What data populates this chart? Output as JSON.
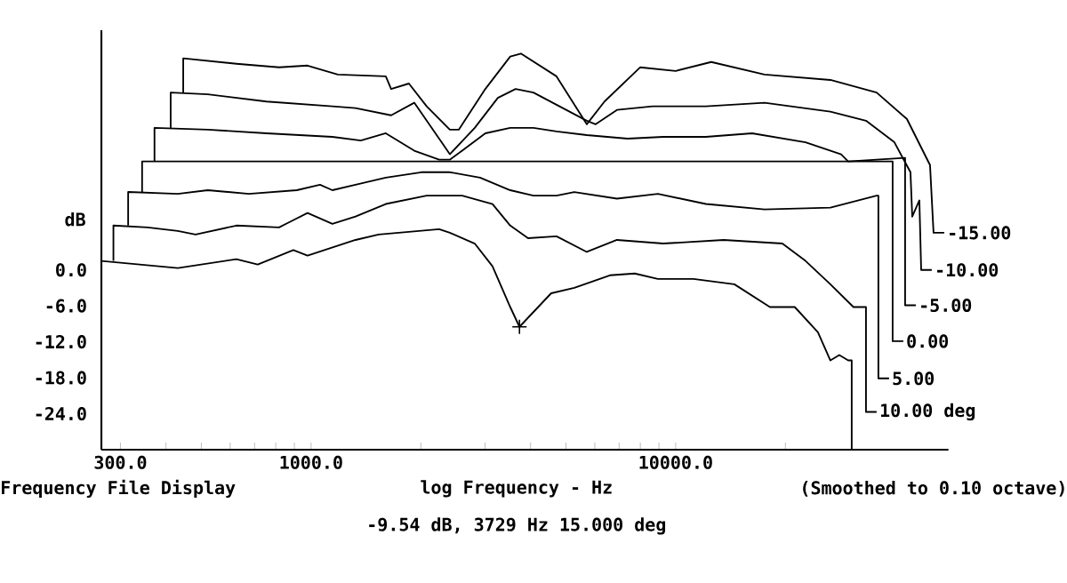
{
  "chart_data": {
    "type": "line",
    "xlabel": "log Frequency - Hz",
    "ylabel": "dB",
    "log": "x",
    "xlim": [
      266,
      56000
    ],
    "ylim": [
      -30,
      40
    ],
    "xticks": [
      {
        "value": 300,
        "label": "300.0"
      },
      {
        "value": 400,
        "label": null
      },
      {
        "value": 500,
        "label": null
      },
      {
        "value": 600,
        "label": null
      },
      {
        "value": 700,
        "label": null
      },
      {
        "value": 800,
        "label": null
      },
      {
        "value": 900,
        "label": null
      },
      {
        "value": 1000,
        "label": "1000.0"
      },
      {
        "value": 2000,
        "label": null
      },
      {
        "value": 3000,
        "label": null
      },
      {
        "value": 4000,
        "label": null
      },
      {
        "value": 5000,
        "label": null
      },
      {
        "value": 6000,
        "label": null
      },
      {
        "value": 7000,
        "label": null
      },
      {
        "value": 8000,
        "label": null
      },
      {
        "value": 9000,
        "label": null
      },
      {
        "value": 10000,
        "label": "10000.0"
      },
      {
        "value": 20000,
        "label": null
      }
    ],
    "yticks": [
      {
        "value": 0,
        "label": "0.0"
      },
      {
        "value": -6,
        "label": "-6.0"
      },
      {
        "value": -12,
        "label": "-12.0"
      },
      {
        "value": -18,
        "label": "-18.0"
      },
      {
        "value": -24,
        "label": "-24.0"
      }
    ],
    "annotations": [
      "Frequency File Display",
      "(Smoothed to 0.10 octave)",
      "-9.54 dB, 3729 Hz  15.000 deg"
    ],
    "series": [
      {
        "color": "#000000",
        "x": [
          266,
          431,
          624,
          714,
          894,
          978,
          1324,
          1532,
          2245,
          2402,
          2811,
          3145,
          3518,
          3729,
          4555,
          5272,
          6599,
          7723,
          8938,
          11190,
          14490,
          18140,
          21220,
          24560,
          26570,
          28110,
          29730,
          30400,
          30400
        ],
        "values": [
          1.5,
          0.3,
          1.8,
          0.9,
          3.3,
          2.4,
          5.0,
          5.9,
          6.8,
          6.2,
          4.4,
          0.6,
          -6.2,
          -9.5,
          -3.9,
          -3.0,
          -0.9,
          -0.6,
          -1.5,
          -1.5,
          -2.4,
          -6.2,
          -6.2,
          -10.4,
          -15.1,
          -14.2,
          -15.1,
          -15.1,
          -30
        ]
      },
      {
        "type": "scatter",
        "marker": "cross",
        "color": "#000000",
        "x": [
          3729
        ],
        "values": [
          -9.5
        ]
      },
      {
        "name": "10.00 deg",
        "color": "#000000",
        "x": [
          287,
          287,
          356,
          431,
          482,
          624,
          817,
          874,
          978,
          1144,
          1324,
          1603,
          2075,
          2597,
          3145,
          3518,
          3937,
          4712,
          5704,
          6902,
          9244,
          13540,
          19620,
          22710,
          26570,
          30740,
          33270,
          33270,
          35580
        ],
        "values": [
          1.5,
          7.4,
          7.1,
          6.5,
          5.9,
          7.4,
          7.1,
          8.0,
          9.5,
          7.7,
          8.9,
          11.0,
          12.4,
          12.4,
          11.0,
          7.4,
          5.3,
          5.6,
          3.0,
          5.0,
          4.4,
          5.0,
          4.4,
          1.5,
          -2.4,
          -6.2,
          -6.2,
          -23.7,
          -23.7
        ]
      },
      {
        "name": "5.00",
        "color": "#000000",
        "x": [
          315,
          315,
          431,
          521,
          675,
          914,
          1058,
          1144,
          1324,
          1603,
          2006,
          2402,
          2907,
          3518,
          4072,
          4712,
          5272,
          6902,
          8938,
          12100,
          17530,
          26570,
          35580,
          35980,
          35980,
          38490
        ],
        "values": [
          7.4,
          13.0,
          12.7,
          13.3,
          12.7,
          13.3,
          14.2,
          13.3,
          14.2,
          15.4,
          16.3,
          16.3,
          15.4,
          13.3,
          12.4,
          12.4,
          13.0,
          11.9,
          12.7,
          11.0,
          10.1,
          10.4,
          12.4,
          12.4,
          -18.1,
          -18.1
        ]
      },
      {
        "name": "0.00",
        "color": "#000000",
        "x": [
          344,
          344,
          39370,
          39370,
          42110
        ],
        "values": [
          13.0,
          18.1,
          18.1,
          -11.9,
          -11.9
        ]
      },
      {
        "name": "-5.00",
        "color": "#000000",
        "x": [
          372,
          372,
          521,
          755,
          1144,
          1369,
          1603,
          1919,
          2245,
          2402,
          2597,
          3006,
          3518,
          4072,
          4712,
          5704,
          7384,
          9244,
          12100,
          16210,
          22710,
          28430,
          29730,
          42590,
          42590,
          45570
        ],
        "values": [
          18.1,
          23.7,
          23.4,
          22.8,
          22.2,
          21.6,
          22.8,
          19.9,
          18.4,
          18.4,
          19.9,
          22.8,
          23.7,
          23.7,
          23.1,
          22.5,
          21.9,
          22.2,
          22.2,
          22.8,
          21.3,
          19.3,
          18.1,
          18.7,
          -5.9,
          -5.9
        ]
      },
      {
        "name": "-10.00",
        "color": "#000000",
        "x": [
          412,
          412,
          521,
          755,
          1144,
          1324,
          1658,
          1919,
          2245,
          2402,
          2811,
          3253,
          3639,
          4072,
          5704,
          6033,
          6902,
          8641,
          12100,
          17530,
          26570,
          33270,
          39810,
          44060,
          44560,
          46610,
          47140,
          50400
        ],
        "values": [
          23.7,
          29.6,
          29.3,
          28.1,
          27.3,
          27.0,
          25.8,
          27.9,
          21.9,
          19.3,
          23.7,
          28.7,
          30.2,
          29.6,
          24.9,
          24.3,
          26.7,
          27.3,
          27.3,
          27.9,
          26.4,
          24.9,
          21.3,
          16.3,
          8.9,
          11.6,
          0,
          0
        ]
      },
      {
        "name": "-15.00",
        "color": "#000000",
        "x": [
          446,
          446,
          624,
          817,
          978,
          1184,
          1603,
          1658,
          1855,
          2075,
          2402,
          2541,
          3006,
          3518,
          3763,
          4712,
          5704,
          6380,
          7988,
          10000,
          12520,
          17530,
          26570,
          35580,
          43060,
          49850,
          50970,
          54540
        ],
        "values": [
          29.6,
          35.3,
          34.4,
          33.8,
          34.1,
          32.6,
          32.3,
          30.2,
          31.1,
          27.3,
          23.4,
          23.4,
          30.2,
          35.6,
          36.1,
          32.3,
          24.3,
          28.1,
          33.8,
          33.2,
          34.7,
          32.6,
          31.7,
          29.6,
          25.2,
          17.5,
          6.2,
          6.2
        ]
      }
    ]
  }
}
